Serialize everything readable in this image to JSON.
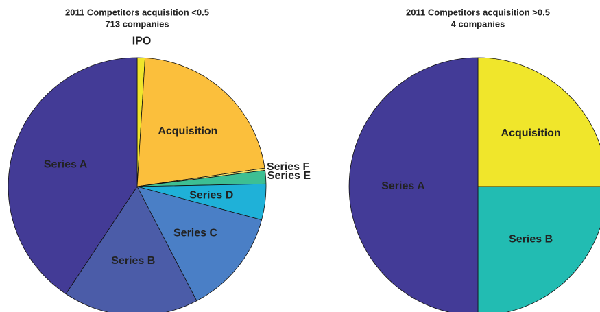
{
  "chart_data": [
    {
      "type": "pie",
      "title": "2011 Competitors acquisition <0.5",
      "subtitle": "713 companies",
      "categories": [
        "IPO",
        "Acquisition",
        "Series F",
        "Series E",
        "Series D",
        "Series C",
        "Series B",
        "Series A"
      ],
      "values": [
        7,
        155,
        2,
        12,
        32,
        94,
        121,
        290
      ],
      "colors": [
        "#f0e52b",
        "#fbbf3c",
        "#f3df6a",
        "#3dbf93",
        "#1fb1d8",
        "#4a7fc6",
        "#4b5ca8",
        "#433b96"
      ]
    },
    {
      "type": "pie",
      "title": "2011 Competitors acquisition  >0.5",
      "subtitle": "4 companies",
      "categories": [
        "Acquisition",
        "Series B",
        "Series A"
      ],
      "values": [
        1,
        1,
        2
      ],
      "colors": [
        "#f0e62b",
        "#22bcb2",
        "#433b97"
      ]
    }
  ]
}
